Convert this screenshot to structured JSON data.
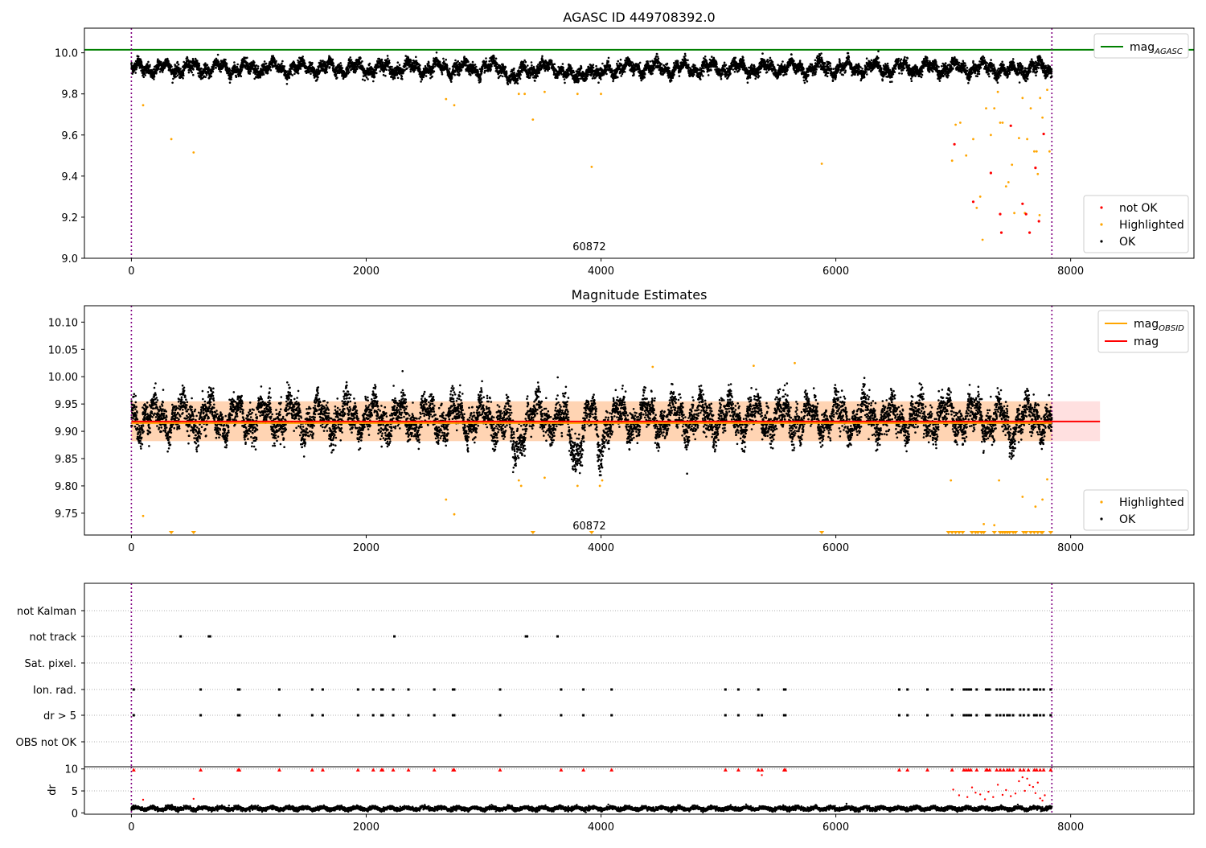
{
  "figure": {
    "title": "AGASC ID 449708392.0"
  },
  "chart_data": [
    {
      "type": "scatter",
      "title": "",
      "xlabel": "",
      "ylabel": "",
      "xlim": [
        -400,
        9050
      ],
      "ylim": [
        9.0,
        10.12
      ],
      "xticks": [
        0,
        2000,
        4000,
        6000,
        8000
      ],
      "yticks": [
        9.0,
        9.2,
        9.4,
        9.6,
        9.8,
        10.0
      ],
      "ytick_labels": [
        "9.0",
        "9.2",
        "9.4",
        "9.6",
        "9.8",
        "10.0"
      ],
      "hlines": [
        {
          "name_main": "mag",
          "name_sub": "AGASC",
          "y": 10.015,
          "color": "#008000"
        }
      ],
      "vlines": [
        0,
        7840
      ],
      "annotation": {
        "text": "60872",
        "x": 3900,
        "y": 9.04
      },
      "legend_lines_position": "top-right",
      "legend_points_position": "bottom-right",
      "legend_points": [
        {
          "name": "not OK",
          "color": "#ff0000"
        },
        {
          "name": "Highlighted",
          "color": "#ffa500"
        },
        {
          "name": "OK",
          "color": "#000000"
        }
      ],
      "ok_series": {
        "n": 7800,
        "x_max": 7840,
        "baseline": 9.925,
        "noise": 0.028,
        "dips": [
          [
            3270,
            90,
            0.08
          ],
          [
            3780,
            100,
            0.08
          ],
          [
            3990,
            60,
            0.08
          ],
          [
            7480,
            60,
            0.04
          ]
        ]
      },
      "highlighted": [
        [
          100,
          9.745
        ],
        [
          340,
          9.58
        ],
        [
          530,
          9.515
        ],
        [
          2680,
          9.775
        ],
        [
          2750,
          9.745
        ],
        [
          3300,
          9.8
        ],
        [
          3350,
          9.8
        ],
        [
          3420,
          9.675
        ],
        [
          3520,
          9.81
        ],
        [
          3800,
          9.8
        ],
        [
          3920,
          9.445
        ],
        [
          4000,
          9.8
        ],
        [
          5880,
          9.46
        ],
        [
          6990,
          9.475
        ],
        [
          7020,
          9.65
        ],
        [
          7060,
          9.66
        ],
        [
          7110,
          9.5
        ],
        [
          7170,
          9.58
        ],
        [
          7200,
          9.245
        ],
        [
          7230,
          9.3
        ],
        [
          7250,
          9.09
        ],
        [
          7280,
          9.73
        ],
        [
          7320,
          9.6
        ],
        [
          7350,
          9.73
        ],
        [
          7380,
          9.81
        ],
        [
          7400,
          9.66
        ],
        [
          7420,
          9.66
        ],
        [
          7450,
          9.35
        ],
        [
          7470,
          9.37
        ],
        [
          7500,
          9.455
        ],
        [
          7520,
          9.22
        ],
        [
          7560,
          9.585
        ],
        [
          7590,
          9.78
        ],
        [
          7610,
          9.22
        ],
        [
          7630,
          9.58
        ],
        [
          7660,
          9.73
        ],
        [
          7690,
          9.52
        ],
        [
          7710,
          9.52
        ],
        [
          7720,
          9.41
        ],
        [
          7740,
          9.78
        ],
        [
          7760,
          9.685
        ],
        [
          7800,
          9.82
        ],
        [
          7820,
          9.52
        ],
        [
          7735,
          9.21
        ]
      ],
      "not_ok": [
        [
          7010,
          9.555
        ],
        [
          7170,
          9.275
        ],
        [
          7320,
          9.415
        ],
        [
          7400,
          9.215
        ],
        [
          7410,
          9.125
        ],
        [
          7490,
          9.645
        ],
        [
          7590,
          9.265
        ],
        [
          7620,
          9.215
        ],
        [
          7650,
          9.125
        ],
        [
          7700,
          9.44
        ],
        [
          7730,
          9.18
        ],
        [
          7770,
          9.605
        ]
      ]
    },
    {
      "type": "scatter",
      "title": "Magnitude Estimates",
      "xlabel": "",
      "ylabel": "",
      "xlim": [
        -400,
        9050
      ],
      "ylim": [
        9.71,
        10.13
      ],
      "xticks": [
        0,
        2000,
        4000,
        6000,
        8000
      ],
      "yticks": [
        9.75,
        9.8,
        9.85,
        9.9,
        9.95,
        10.0,
        10.05,
        10.1
      ],
      "ytick_labels": [
        "9.75",
        "9.80",
        "9.85",
        "9.90",
        "9.95",
        "10.00",
        "10.05",
        "10.10"
      ],
      "hlines": [
        {
          "name_main": "mag",
          "name_sub": "OBSID",
          "y": 9.915,
          "x_end": 7840,
          "color": "#ffa500"
        },
        {
          "name_main": "mag",
          "name_sub": "",
          "y": 9.918,
          "x_end": 8250,
          "color": "#ff0000"
        }
      ],
      "bands": [
        {
          "y0": 9.882,
          "y1": 9.955,
          "x0": 0,
          "x1": 8250,
          "color": "#ff0000",
          "alpha": 0.12
        },
        {
          "y0": 9.882,
          "y1": 9.955,
          "x0": 0,
          "x1": 7840,
          "color": "#ffa500",
          "alpha": 0.2
        }
      ],
      "vlines": [
        0,
        7840
      ],
      "annotation": {
        "text": "60872",
        "x": 3900,
        "y": 9.72
      },
      "legend_lines_position": "top-right",
      "legend_points_position": "bottom-right",
      "legend_points": [
        {
          "name": "Highlighted",
          "color": "#ffa500"
        },
        {
          "name": "OK",
          "color": "#000000"
        }
      ],
      "ok_series": {
        "n": 7800,
        "x_max": 7840,
        "baseline": 9.925,
        "noise": 0.028,
        "dips": [
          [
            3270,
            90,
            0.08
          ],
          [
            3780,
            100,
            0.08
          ],
          [
            3990,
            60,
            0.08
          ],
          [
            7480,
            60,
            0.04
          ]
        ]
      },
      "highlighted": [
        [
          100,
          9.745
        ],
        [
          2680,
          9.775
        ],
        [
          2750,
          9.748
        ],
        [
          3300,
          9.81
        ],
        [
          3320,
          9.8
        ],
        [
          3520,
          9.815
        ],
        [
          3800,
          9.8
        ],
        [
          3990,
          9.8
        ],
        [
          4010,
          9.81
        ],
        [
          4440,
          10.018
        ],
        [
          5300,
          10.02
        ],
        [
          5650,
          10.025
        ],
        [
          6980,
          9.81
        ],
        [
          7390,
          9.81
        ],
        [
          7260,
          9.73
        ],
        [
          7350,
          9.728
        ],
        [
          7590,
          9.78
        ],
        [
          7700,
          9.762
        ],
        [
          7760,
          9.775
        ],
        [
          7800,
          9.812
        ]
      ],
      "clipped_x": [
        340,
        530,
        3420,
        3920,
        5880,
        6960,
        6990,
        7020,
        7050,
        7080,
        7160,
        7190,
        7210,
        7240,
        7260,
        7350,
        7400,
        7420,
        7440,
        7460,
        7480,
        7510,
        7530,
        7600,
        7620,
        7660,
        7690,
        7720,
        7750,
        7760,
        7830
      ]
    },
    {
      "type": "scatter",
      "title": "",
      "xlabel": "",
      "ylabel": "",
      "xlim": [
        -400,
        9050
      ],
      "categories": [
        "not Kalman",
        "not track",
        "Sat. pixel.",
        "Ion. rad.",
        "dr > 5",
        "OBS not OK"
      ],
      "flags": {
        "not Kalman": [],
        "not track": [
          420,
          660,
          670,
          2240,
          3360,
          3370,
          3630
        ],
        "Sat. pixel.": [],
        "Ion. rad.": [
          20,
          590,
          910,
          920,
          1260,
          1540,
          1630,
          1930,
          2060,
          2130,
          2140,
          2230,
          2360,
          2580,
          2740,
          2750,
          3140,
          3660,
          3850,
          4090,
          5060,
          5170,
          5340,
          5560,
          5570,
          6540,
          6610,
          6780,
          6990,
          7090,
          7110,
          7130,
          7150,
          7200,
          7280,
          7290,
          7310,
          7370,
          7400,
          7430,
          7460,
          7480,
          7510,
          7570,
          7600,
          7640,
          7690,
          7710,
          7740,
          7770,
          7830
        ],
        "dr > 5": [
          20,
          590,
          910,
          920,
          1260,
          1540,
          1630,
          1930,
          2060,
          2130,
          2140,
          2230,
          2360,
          2580,
          2740,
          2750,
          3140,
          3660,
          3850,
          4090,
          5060,
          5170,
          5340,
          5370,
          5560,
          5570,
          6540,
          6610,
          6780,
          6990,
          7090,
          7110,
          7130,
          7150,
          7200,
          7280,
          7290,
          7310,
          7370,
          7400,
          7430,
          7460,
          7480,
          7510,
          7570,
          7600,
          7640,
          7690,
          7710,
          7740,
          7770,
          7830
        ],
        "OBS not OK": []
      },
      "vlines": [
        0,
        7840
      ]
    },
    {
      "type": "scatter",
      "title": "",
      "xlabel": "",
      "ylabel": "dr",
      "xlim": [
        -400,
        9050
      ],
      "ylim": [
        -0.3,
        10.5
      ],
      "xticks": [
        0,
        2000,
        4000,
        6000,
        8000
      ],
      "yticks": [
        0,
        5,
        10
      ],
      "ytick_labels": [
        "0",
        "5",
        "10"
      ],
      "vlines": [
        0,
        7840
      ],
      "ok_series": {
        "n": 7800,
        "x_max": 7840,
        "baseline": 1.0,
        "noise": 0.35
      },
      "red_points": [
        [
          20,
          9.8
        ],
        [
          100,
          3.0
        ],
        [
          530,
          3.2
        ],
        [
          7000,
          5.3
        ],
        [
          7050,
          4.0
        ],
        [
          7120,
          3.6
        ],
        [
          7160,
          5.8
        ],
        [
          7190,
          4.6
        ],
        [
          7230,
          4.2
        ],
        [
          7270,
          3.1
        ],
        [
          7300,
          4.8
        ],
        [
          7340,
          3.6
        ],
        [
          7380,
          6.4
        ],
        [
          7420,
          4.1
        ],
        [
          7450,
          5.2
        ],
        [
          7490,
          3.8
        ],
        [
          7530,
          4.4
        ],
        [
          7560,
          7.2
        ],
        [
          7590,
          8.1
        ],
        [
          7610,
          5.0
        ],
        [
          7630,
          7.8
        ],
        [
          7650,
          6.3
        ],
        [
          7680,
          5.9
        ],
        [
          7700,
          4.5
        ],
        [
          7720,
          6.9
        ],
        [
          7740,
          3.3
        ],
        [
          7760,
          2.8
        ],
        [
          7780,
          4.0
        ],
        [
          5370,
          8.6
        ]
      ]
    }
  ]
}
